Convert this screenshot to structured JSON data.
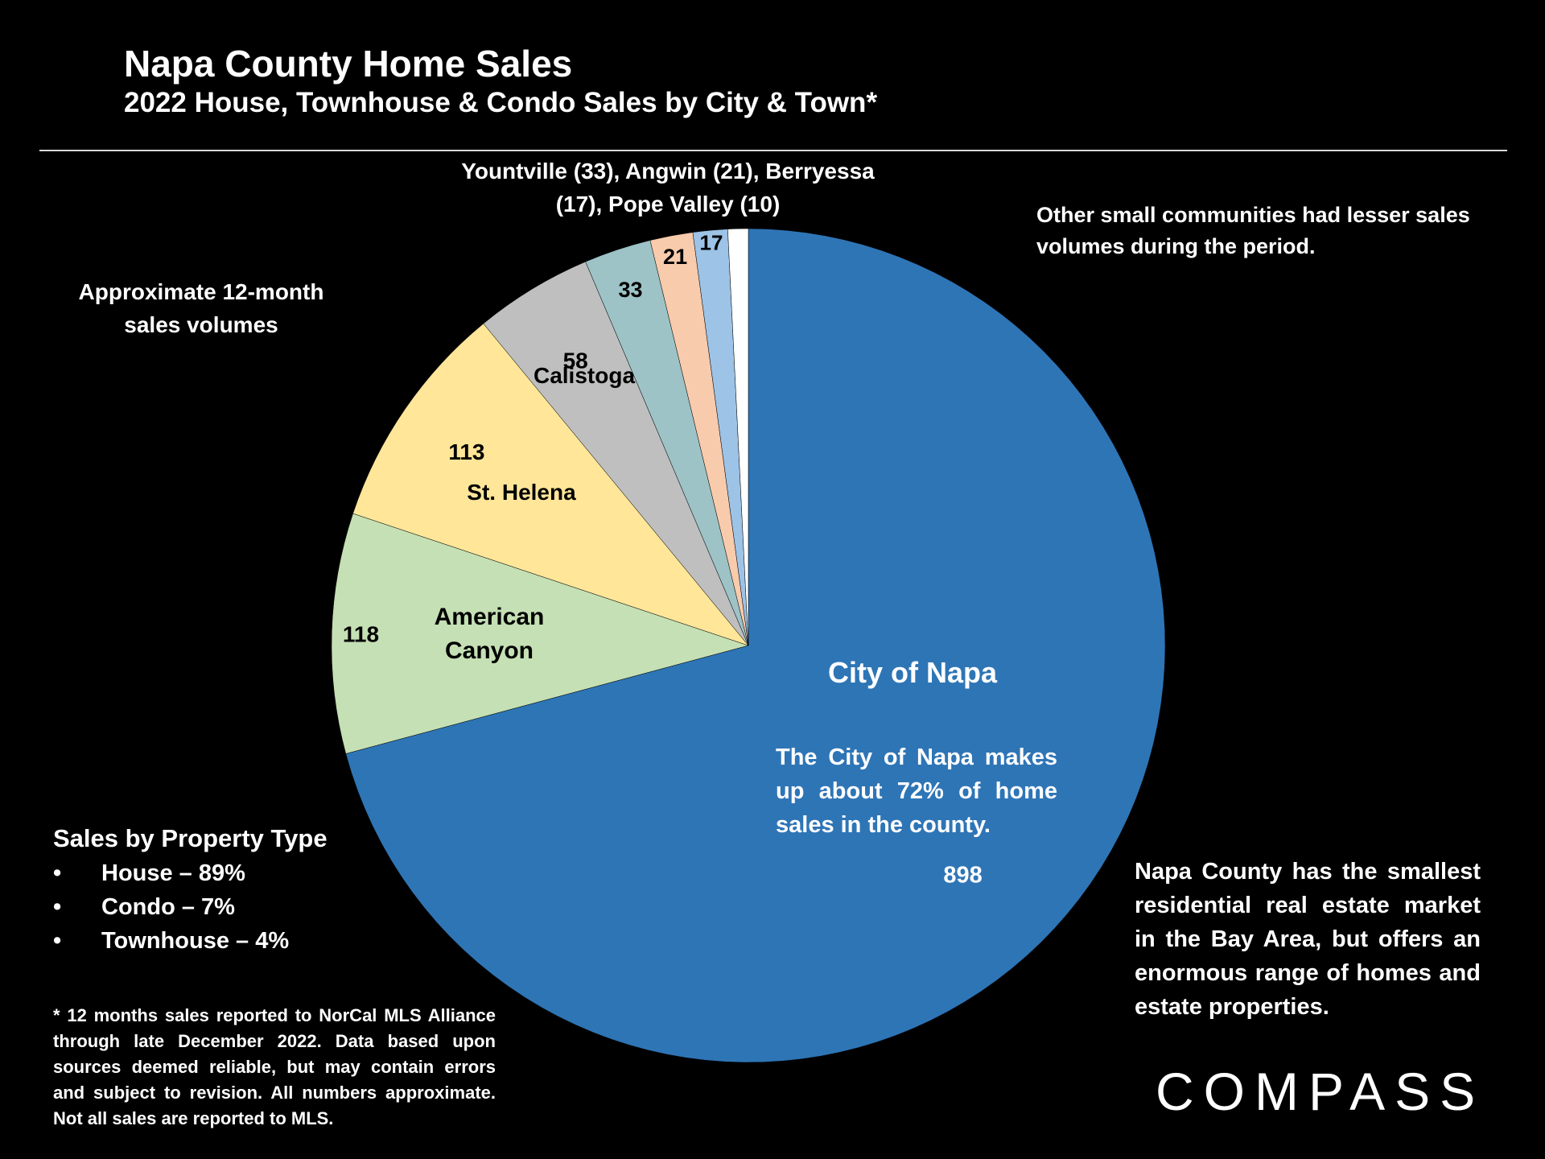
{
  "title": "Napa County Home Sales",
  "subtitle": "2022 House, Townhouse & Condo Sales by City & Town*",
  "notes": {
    "left": "Approximate 12-month sales volumes",
    "top": "Yountville (33), Angwin (21), Berryessa (17), Pope Valley (10)",
    "right": "Other small communities had lesser sales volumes during the period.",
    "napa_desc": "The City of Napa makes up about 72% of home sales in the county.",
    "county": "Napa County has the smallest residential real estate market in the Bay Area, but offers an enormous range of homes and estate properties."
  },
  "property_type": {
    "heading": "Sales by Property Type",
    "bullet": "•",
    "items": [
      "House – 89%",
      "Condo – 7%",
      "Townhouse – 4%"
    ]
  },
  "footnote": "* 12 months sales reported to NorCal MLS Alliance through late December 2022. Data based upon sources deemed reliable, but may contain errors and subject to revision. All numbers approximate. Not all sales are reported to MLS.",
  "logo": "COMPASS",
  "chart_data": {
    "type": "pie",
    "start": "12 o'clock, clockwise",
    "legend": "none",
    "slices": [
      {
        "label": "City of Napa",
        "value": 898,
        "value_label": "898",
        "color": "#2e75b6"
      },
      {
        "label": "American Canyon",
        "value": 118,
        "value_label": "118",
        "color": "#c5e0b4"
      },
      {
        "label": "St. Helena",
        "value": 113,
        "value_label": "113",
        "color": "#ffe699"
      },
      {
        "label": "Calistoga",
        "value": 58,
        "value_label": "58",
        "color": "#bfbfbf"
      },
      {
        "label": "",
        "value": 33,
        "value_label": "33",
        "color": "#9dc3c6"
      },
      {
        "label": "",
        "value": 21,
        "value_label": "21",
        "color": "#f8cbad"
      },
      {
        "label": "",
        "value": 17,
        "value_label": "17",
        "color": "#9dc3e6"
      },
      {
        "label": "",
        "value": 10,
        "value_label": "",
        "color": "#ffffff"
      }
    ]
  }
}
